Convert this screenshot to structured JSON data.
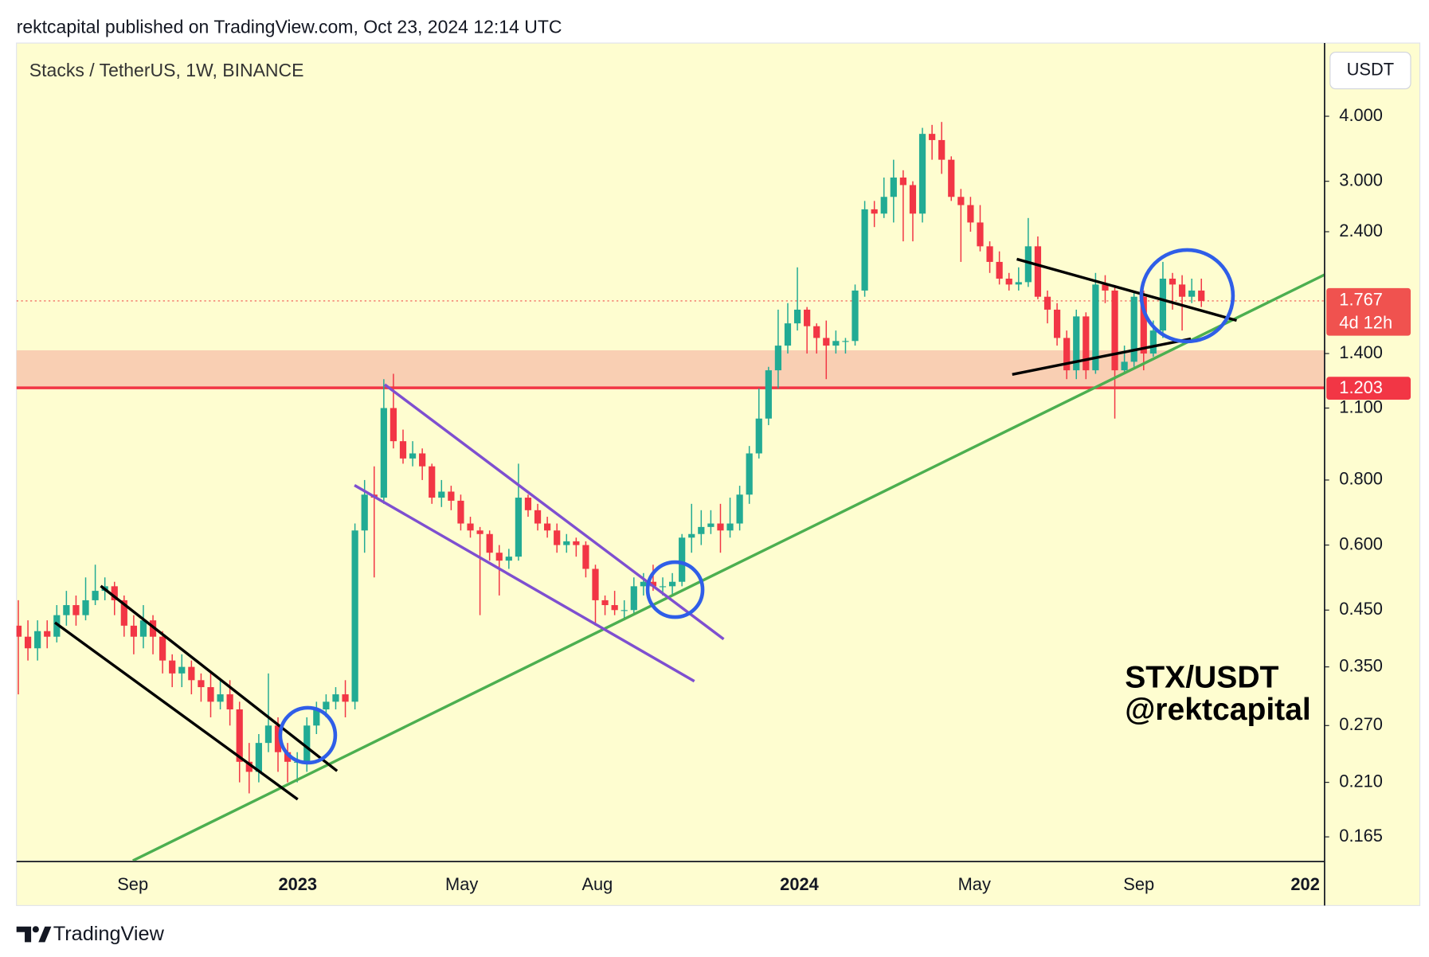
{
  "chart_data": {
    "type": "candlestick",
    "header": "rektcapital published on TradingView.com, Oct 23, 2024 12:14 UTC",
    "title": "Stacks / TetherUS, 1W, BINANCE",
    "currency": "USDT",
    "annotation": [
      "STX/USDT",
      "@rektcapital"
    ],
    "footer": "TradingView",
    "log_scale": true,
    "grid": false,
    "up_color": "#22ab94",
    "down_color": "#f23645",
    "open": [
      0.42,
      0.4,
      0.38,
      0.41,
      0.4,
      0.44,
      0.46,
      0.44,
      0.47,
      0.49,
      0.5,
      0.47,
      0.42,
      0.4,
      0.43,
      0.4,
      0.36,
      0.34,
      0.35,
      0.33,
      0.32,
      0.3,
      0.31,
      0.29,
      0.23,
      0.22,
      0.25,
      0.27,
      0.24,
      0.23,
      0.23,
      0.27,
      0.29,
      0.3,
      0.31,
      0.3,
      0.64,
      0.75,
      0.74,
      1.1,
      0.95,
      0.88,
      0.9,
      0.85,
      0.74,
      0.76,
      0.73,
      0.66,
      0.64,
      0.63,
      0.58,
      0.56,
      0.57,
      0.74,
      0.7,
      0.66,
      0.64,
      0.6,
      0.61,
      0.6,
      0.54,
      0.47,
      0.46,
      0.45,
      0.45,
      0.5,
      0.51,
      0.5,
      0.5,
      0.51,
      0.62,
      0.63,
      0.65,
      0.66,
      0.64,
      0.66,
      0.75,
      0.9,
      1.05,
      1.3,
      1.45,
      1.6,
      1.7,
      1.58,
      1.5,
      1.45,
      1.48,
      1.48,
      1.85,
      2.65,
      2.6,
      2.8,
      3.05,
      2.95,
      2.6,
      3.7,
      3.6,
      3.3,
      2.8,
      2.7,
      2.5,
      2.25,
      2.1,
      1.95,
      1.9,
      1.92,
      2.25,
      1.8,
      1.7,
      1.5,
      1.3,
      1.65,
      1.3,
      1.9,
      1.85,
      1.3,
      1.35,
      1.8,
      1.4,
      1.55,
      1.95,
      1.9,
      1.8,
      1.85
    ],
    "high": [
      0.47,
      0.43,
      0.43,
      0.43,
      0.46,
      0.49,
      0.48,
      0.52,
      0.55,
      0.52,
      0.51,
      0.48,
      0.44,
      0.46,
      0.44,
      0.41,
      0.37,
      0.37,
      0.36,
      0.34,
      0.34,
      0.33,
      0.33,
      0.3,
      0.25,
      0.26,
      0.34,
      0.28,
      0.25,
      0.24,
      0.28,
      0.3,
      0.31,
      0.32,
      0.33,
      0.66,
      0.8,
      0.85,
      1.25,
      1.28,
      1.0,
      0.95,
      0.92,
      0.86,
      0.8,
      0.78,
      0.75,
      0.68,
      0.65,
      0.64,
      0.6,
      0.59,
      0.86,
      0.75,
      0.72,
      0.68,
      0.66,
      0.63,
      0.62,
      0.61,
      0.55,
      0.48,
      0.49,
      0.47,
      0.52,
      0.53,
      0.55,
      0.52,
      0.53,
      0.63,
      0.72,
      0.7,
      0.7,
      0.72,
      0.74,
      0.78,
      0.93,
      1.2,
      1.32,
      1.7,
      1.75,
      2.05,
      1.72,
      1.6,
      1.62,
      1.55,
      1.5,
      1.9,
      2.75,
      2.75,
      3.05,
      3.3,
      3.15,
      3.0,
      3.8,
      3.85,
      3.9,
      3.35,
      2.9,
      2.8,
      2.7,
      2.3,
      2.2,
      2.0,
      2.05,
      2.55,
      2.35,
      1.85,
      1.75,
      1.55,
      1.7,
      1.68,
      2.0,
      1.98,
      1.88,
      1.45,
      1.85,
      1.85,
      1.62,
      2.1,
      2.0,
      1.98,
      1.95,
      1.95
    ],
    "low": [
      0.31,
      0.36,
      0.36,
      0.38,
      0.39,
      0.42,
      0.42,
      0.43,
      0.46,
      0.47,
      0.44,
      0.4,
      0.37,
      0.38,
      0.37,
      0.34,
      0.32,
      0.32,
      0.31,
      0.3,
      0.28,
      0.29,
      0.27,
      0.21,
      0.2,
      0.21,
      0.24,
      0.22,
      0.21,
      0.21,
      0.22,
      0.26,
      0.28,
      0.29,
      0.28,
      0.29,
      0.58,
      0.52,
      0.72,
      0.92,
      0.86,
      0.85,
      0.8,
      0.72,
      0.71,
      0.7,
      0.64,
      0.62,
      0.44,
      0.56,
      0.48,
      0.54,
      0.56,
      0.68,
      0.64,
      0.62,
      0.58,
      0.58,
      0.57,
      0.52,
      0.42,
      0.44,
      0.44,
      0.43,
      0.44,
      0.48,
      0.49,
      0.48,
      0.48,
      0.5,
      0.58,
      0.6,
      0.63,
      0.58,
      0.62,
      0.64,
      0.72,
      0.88,
      1.02,
      1.2,
      1.4,
      1.55,
      1.4,
      1.4,
      1.25,
      1.4,
      1.4,
      1.45,
      1.8,
      2.45,
      2.55,
      2.5,
      2.3,
      2.3,
      2.5,
      3.3,
      3.1,
      2.75,
      2.1,
      2.4,
      2.2,
      2.0,
      1.9,
      1.85,
      1.85,
      1.88,
      1.78,
      1.6,
      1.45,
      1.25,
      1.25,
      1.25,
      1.28,
      1.75,
      1.05,
      1.28,
      1.32,
      1.3,
      1.38,
      1.5,
      1.7,
      1.55,
      1.75,
      1.72
    ],
    "close": [
      0.4,
      0.38,
      0.41,
      0.4,
      0.44,
      0.46,
      0.44,
      0.47,
      0.49,
      0.5,
      0.47,
      0.42,
      0.4,
      0.43,
      0.4,
      0.36,
      0.34,
      0.35,
      0.33,
      0.32,
      0.3,
      0.31,
      0.29,
      0.23,
      0.22,
      0.25,
      0.27,
      0.24,
      0.23,
      0.23,
      0.27,
      0.29,
      0.3,
      0.31,
      0.3,
      0.64,
      0.75,
      0.74,
      1.1,
      0.95,
      0.88,
      0.9,
      0.85,
      0.74,
      0.76,
      0.73,
      0.66,
      0.64,
      0.63,
      0.58,
      0.56,
      0.57,
      0.74,
      0.7,
      0.66,
      0.64,
      0.6,
      0.61,
      0.6,
      0.54,
      0.47,
      0.46,
      0.45,
      0.45,
      0.5,
      0.51,
      0.5,
      0.5,
      0.51,
      0.62,
      0.63,
      0.65,
      0.66,
      0.64,
      0.66,
      0.75,
      0.9,
      1.05,
      1.3,
      1.45,
      1.6,
      1.7,
      1.58,
      1.5,
      1.45,
      1.48,
      1.48,
      1.85,
      2.65,
      2.6,
      2.8,
      3.05,
      2.95,
      2.6,
      3.7,
      3.6,
      3.3,
      2.8,
      2.7,
      2.5,
      2.25,
      2.1,
      1.95,
      1.9,
      1.92,
      2.25,
      1.8,
      1.7,
      1.5,
      1.3,
      1.65,
      1.3,
      1.9,
      1.85,
      1.3,
      1.35,
      1.8,
      1.4,
      1.55,
      1.95,
      1.9,
      1.8,
      1.85,
      1.767
    ],
    "last_price": 1.767,
    "countdown": "4d 12h",
    "last_price_color": "#f0524f",
    "level": 1.203,
    "level_color": "#f23645",
    "zone": [
      1.203,
      1.42
    ],
    "zone_color": "#f9cfb3",
    "ylim": [
      0.1485,
      5.53
    ],
    "yticks": [
      {
        "value": 4,
        "label": "4.000"
      },
      {
        "value": 3,
        "label": "3.000"
      },
      {
        "value": 2.4,
        "label": "2.400"
      },
      {
        "value": 1.4,
        "label": "1.400"
      },
      {
        "value": 1.1,
        "label": "1.100"
      },
      {
        "value": 0.8,
        "label": "0.800"
      },
      {
        "value": 0.6,
        "label": "0.600"
      },
      {
        "value": 0.45,
        "label": "0.450"
      },
      {
        "value": 0.35,
        "label": "0.350"
      },
      {
        "value": 0.27,
        "label": "0.270"
      },
      {
        "value": 0.21,
        "label": "0.210"
      },
      {
        "value": 0.165,
        "label": "0.165"
      }
    ],
    "xlim": [
      -0.19,
      135.81
    ],
    "xticks": [
      {
        "value": 11.9,
        "label": "Sep"
      },
      {
        "value": 29.05,
        "label": "2023"
      },
      {
        "value": 46.1,
        "label": "May"
      },
      {
        "value": 60.2,
        "label": "Aug"
      },
      {
        "value": 81.2,
        "label": "2024"
      },
      {
        "value": 99.4,
        "label": "May"
      },
      {
        "value": 116.5,
        "label": "Sep"
      },
      {
        "value": 133.8,
        "label": "202"
      }
    ]
  }
}
